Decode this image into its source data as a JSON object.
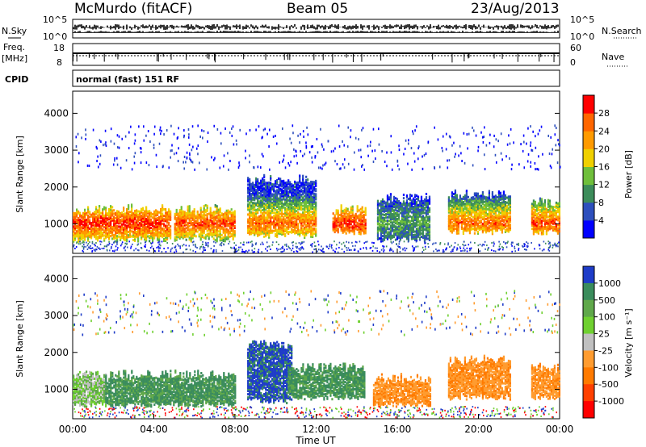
{
  "header": {
    "station": "McMurdo (fitACF)",
    "beam": "Beam 05",
    "date": "23/Aug/2013"
  },
  "status_panels": {
    "nsky_label": "N.Sky",
    "nsearch_label": "N.Search",
    "nsky_ticks": [
      "10^5",
      "10^0"
    ],
    "nsearch_ticks": [
      "10^5",
      "10^0"
    ],
    "freq_label_top": "Freq.",
    "freq_label_bottom": "[MHz]",
    "freq_ticks": [
      "18",
      "8"
    ],
    "nave_label": "Nave",
    "nave_ticks": [
      "60",
      "0"
    ],
    "cpid_label": "CPID",
    "cpid_value": "normal (fast) 151 RF"
  },
  "chart_data": [
    {
      "type": "heatmap",
      "name": "power",
      "ylabel": "Slant Range [km]",
      "ytick_labels": [
        "1000",
        "2000",
        "3000",
        "4000"
      ],
      "y_ticks": [
        1000,
        2000,
        3000,
        4000
      ],
      "ylim": [
        200,
        4600
      ],
      "xlim_hours": [
        0,
        24
      ],
      "colorbar": {
        "label": "Power [dB]",
        "tick_labels": [
          "4",
          "8",
          "12",
          "16",
          "20",
          "24",
          "28"
        ],
        "range": [
          0,
          32
        ],
        "colors": [
          "#0000ff",
          "#2d4fbd",
          "#3c8c5a",
          "#6fbf3b",
          "#f0d000",
          "#ff9a00",
          "#ff6600",
          "#ff0000"
        ]
      },
      "scatter_regions_km": [
        {
          "t0": 0.0,
          "t1": 4.8,
          "r0": 500,
          "r1": 1500,
          "peak": 28
        },
        {
          "t0": 5.0,
          "t1": 8.0,
          "r0": 500,
          "r1": 1500,
          "peak": 26
        },
        {
          "t0": 8.6,
          "t1": 12.0,
          "r0": 600,
          "r1": 2300,
          "peak": 24
        },
        {
          "t0": 12.8,
          "t1": 14.4,
          "r0": 700,
          "r1": 1500,
          "peak": 28
        },
        {
          "t0": 15.0,
          "t1": 17.6,
          "r0": 500,
          "r1": 1800,
          "peak": 10
        },
        {
          "t0": 18.5,
          "t1": 21.6,
          "r0": 700,
          "r1": 1900,
          "peak": 24
        },
        {
          "t0": 22.6,
          "t1": 24.0,
          "r0": 700,
          "r1": 1700,
          "peak": 26
        }
      ]
    },
    {
      "type": "heatmap",
      "name": "velocity",
      "ylabel": "Slant Range [km]",
      "ytick_labels": [
        "1000",
        "2000",
        "3000",
        "4000"
      ],
      "y_ticks": [
        1000,
        2000,
        3000,
        4000
      ],
      "ylim": [
        200,
        4600
      ],
      "xlim_hours": [
        0,
        24
      ],
      "xtick_labels": [
        "00:00",
        "04:00",
        "08:00",
        "12:00",
        "16:00",
        "20:00",
        "00:00"
      ],
      "xlabel": "Time UT",
      "colorbar": {
        "label": "Velocity [m s⁻¹]",
        "tick_labels": [
          "1000",
          "500",
          "100",
          "25",
          "-25",
          "-100",
          "-500",
          "-1000"
        ],
        "colors": [
          "#1e3cc8",
          "#3a8c5c",
          "#5fa84a",
          "#6fd030",
          "#c0c0c0",
          "#ff9c30",
          "#ff7a00",
          "#ff4000",
          "#ff0000"
        ]
      },
      "scatter_regions_km": [
        {
          "t0": 0.0,
          "t1": 1.6,
          "r0": 500,
          "r1": 1500,
          "class": "green"
        },
        {
          "t0": 1.6,
          "t1": 8.0,
          "r0": 500,
          "r1": 1500,
          "class": "darkgreen"
        },
        {
          "t0": 8.6,
          "t1": 10.8,
          "r0": 600,
          "r1": 2300,
          "class": "blue"
        },
        {
          "t0": 10.6,
          "t1": 14.4,
          "r0": 700,
          "r1": 1700,
          "class": "darkgreen"
        },
        {
          "t0": 14.8,
          "t1": 17.6,
          "r0": 500,
          "r1": 1400,
          "class": "orange"
        },
        {
          "t0": 18.5,
          "t1": 21.6,
          "r0": 700,
          "r1": 1900,
          "class": "orange"
        },
        {
          "t0": 22.6,
          "t1": 24.0,
          "r0": 700,
          "r1": 1700,
          "class": "orange"
        }
      ]
    }
  ]
}
